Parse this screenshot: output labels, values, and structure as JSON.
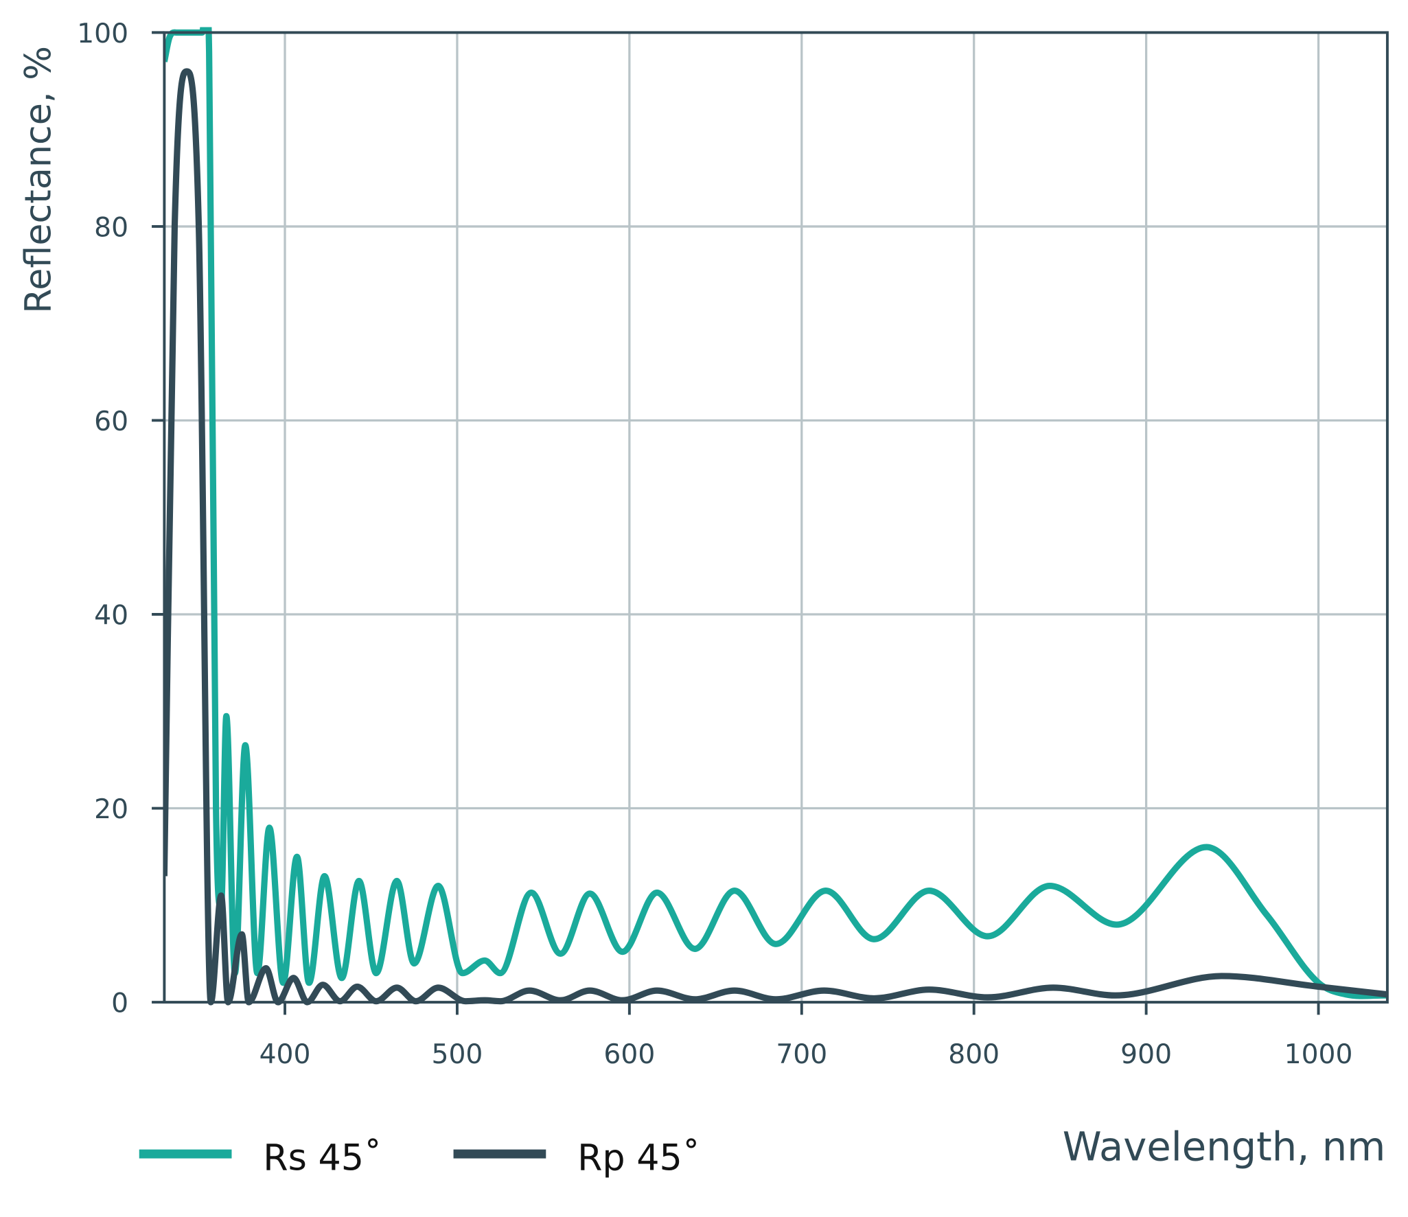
{
  "chart_data": {
    "type": "line",
    "x_label": "Wavelength, nm",
    "y_label": "Reflectance, %",
    "xlim": [
      330,
      1040
    ],
    "ylim": [
      0,
      100
    ],
    "xticks": [
      400,
      500,
      600,
      700,
      800,
      900,
      1000
    ],
    "yticks": [
      0,
      20,
      40,
      60,
      80,
      100
    ],
    "grid": true,
    "legend": "bottom-left",
    "series": [
      {
        "name": "Rs 45˚",
        "color": "#1aaa9b",
        "x": [
          330,
          333,
          337,
          345,
          352,
          356,
          360,
          363,
          366,
          371,
          377,
          384,
          391,
          399,
          407,
          414,
          423,
          433,
          443,
          453,
          465,
          475,
          489,
          503,
          516,
          525,
          543,
          560,
          577,
          596,
          616,
          638,
          661,
          685,
          714,
          742,
          774,
          808,
          844,
          883,
          935,
          970,
          1000,
          1016,
          1040
        ],
        "values": [
          97,
          99.5,
          100,
          100,
          100,
          98,
          20,
          10,
          29.5,
          3,
          26.5,
          3,
          18,
          2,
          15,
          2,
          13,
          2.5,
          12.5,
          3,
          12.5,
          4,
          12,
          3,
          4.3,
          3,
          11.3,
          5,
          11.2,
          5.2,
          11.3,
          5.5,
          11.5,
          6,
          11.5,
          6.5,
          11.5,
          6.8,
          12,
          8,
          16,
          9,
          2,
          0.8,
          0.7
        ]
      },
      {
        "name": "Rp 45˚",
        "color": "#324a56",
        "x": [
          330,
          336,
          343,
          350,
          357,
          363,
          367,
          375,
          379,
          389,
          396,
          405,
          413,
          422,
          432,
          442,
          453,
          465,
          476,
          489,
          505,
          516,
          525,
          542,
          560,
          577,
          596,
          616,
          638,
          661,
          685,
          713,
          742,
          774,
          808,
          846,
          882,
          944,
          1000,
          1040
        ],
        "values": [
          13,
          80,
          96,
          80,
          0,
          11,
          0,
          7,
          0,
          3.5,
          0,
          2.5,
          0,
          1.8,
          0.1,
          1.6,
          0.1,
          1.5,
          0.1,
          1.5,
          0.1,
          0.2,
          0.1,
          1.2,
          0.2,
          1.2,
          0.2,
          1.2,
          0.3,
          1.2,
          0.3,
          1.2,
          0.4,
          1.3,
          0.5,
          1.5,
          0.7,
          2.7,
          1.6,
          0.8
        ]
      }
    ]
  }
}
